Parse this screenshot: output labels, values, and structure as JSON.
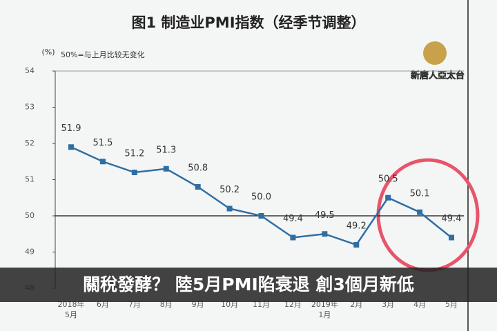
{
  "chart_data": {
    "type": "line",
    "title": "图1  制造业PMI指数（经季节调整）",
    "y_label": "(%)",
    "note": "50%=与上月比较无变化",
    "categories": [
      [
        "2018年",
        "5月"
      ],
      [
        "6月"
      ],
      [
        "7月"
      ],
      [
        "8月"
      ],
      [
        "9月"
      ],
      [
        "10月"
      ],
      [
        "11月"
      ],
      [
        "12月"
      ],
      [
        "2019年",
        "1月"
      ],
      [
        "2月"
      ],
      [
        "3月"
      ],
      [
        "4月"
      ],
      [
        "5月"
      ]
    ],
    "series": [
      {
        "name": "制造业PMI",
        "color": "#2f6ea3",
        "values": [
          51.9,
          51.5,
          51.2,
          51.3,
          50.8,
          50.2,
          50.0,
          49.4,
          49.5,
          49.2,
          50.5,
          50.1,
          49.4
        ],
        "value_labels": [
          "51.9",
          "51.5",
          "51.2",
          "51.3",
          "50.8",
          "50.2",
          "50.0",
          "49.4",
          "49.5",
          "49.2",
          "50.5",
          "50.1",
          "49.4"
        ]
      }
    ],
    "reference_line": 50,
    "ylim": [
      48,
      54
    ],
    "yticks": [
      48,
      49,
      50,
      51,
      52,
      53,
      54
    ],
    "caption": "關稅發酵？ 陸5月PMI陷衰退 創3個月新低",
    "logo": "新唐人亞太台"
  }
}
